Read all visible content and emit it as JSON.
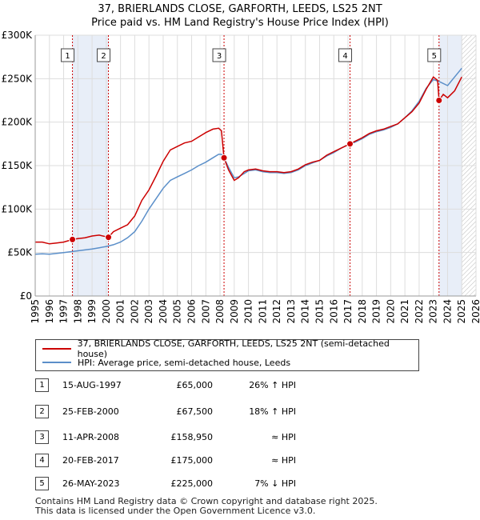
{
  "title_line1": "37, BRIERLANDS CLOSE, GARFORTH, LEEDS, LS25 2NT",
  "title_line2": "Price paid vs. HM Land Registry's House Price Index (HPI)",
  "legend": {
    "property": "37, BRIERLANDS CLOSE, GARFORTH, LEEDS, LS25 2NT (semi-detached house)",
    "hpi": "HPI: Average price, semi-detached house, Leeds"
  },
  "colors": {
    "property": "#cc0000",
    "hpi": "#5b8fc9",
    "shade": "#e8eef8",
    "marker_line": "#cc0000",
    "grid": "#dddddd"
  },
  "sales": [
    {
      "num": "1",
      "date": "15-AUG-1997",
      "price": "£65,000",
      "hpi": "26% ↑ HPI"
    },
    {
      "num": "2",
      "date": "25-FEB-2000",
      "price": "£67,500",
      "hpi": "18% ↑ HPI"
    },
    {
      "num": "3",
      "date": "11-APR-2008",
      "price": "£158,950",
      "hpi": "≈ HPI"
    },
    {
      "num": "4",
      "date": "20-FEB-2017",
      "price": "£175,000",
      "hpi": "≈ HPI"
    },
    {
      "num": "5",
      "date": "26-MAY-2023",
      "price": "£225,000",
      "hpi": "7% ↓ HPI"
    }
  ],
  "footer_line1": "Contains HM Land Registry data © Crown copyright and database right 2025.",
  "footer_line2": "This data is licensed under the Open Government Licence v3.0.",
  "chart_data": {
    "type": "line",
    "title": "Price paid vs. HM Land Registry's House Price Index (HPI)",
    "xlim": [
      1995,
      2026
    ],
    "ylim": [
      0,
      300000
    ],
    "x_ticks": [
      "1995",
      "1996",
      "1997",
      "1998",
      "1999",
      "2000",
      "2001",
      "2002",
      "2003",
      "2004",
      "2005",
      "2006",
      "2007",
      "2008",
      "2009",
      "2010",
      "2011",
      "2012",
      "2013",
      "2014",
      "2015",
      "2016",
      "2017",
      "2018",
      "2019",
      "2020",
      "2021",
      "2022",
      "2023",
      "2024",
      "2025",
      "2026"
    ],
    "y_ticks": [
      {
        "value": 0,
        "label": "£0"
      },
      {
        "value": 50000,
        "label": "£50K"
      },
      {
        "value": 100000,
        "label": "£100K"
      },
      {
        "value": 150000,
        "label": "£150K"
      },
      {
        "value": 200000,
        "label": "£200K"
      },
      {
        "value": 250000,
        "label": "£250K"
      },
      {
        "value": 300000,
        "label": "£300K"
      }
    ],
    "shaded_periods": [
      [
        1997.62,
        2000.15
      ],
      [
        2023.4,
        2025.0
      ]
    ],
    "hatched_from": 2025.0,
    "sale_markers": [
      {
        "label": "1",
        "x": 1997.62,
        "y": 65000
      },
      {
        "label": "2",
        "x": 2000.15,
        "y": 67500
      },
      {
        "label": "3",
        "x": 2008.28,
        "y": 158950
      },
      {
        "label": "4",
        "x": 2017.14,
        "y": 175000
      },
      {
        "label": "5",
        "x": 2023.4,
        "y": 225000
      }
    ],
    "series": [
      {
        "name": "37, BRIERLANDS CLOSE, GARFORTH, LEEDS, LS25 2NT (semi-detached house)",
        "x": [
          1995.0,
          1995.5,
          1996.0,
          1996.5,
          1997.0,
          1997.62,
          1998.0,
          1998.5,
          1999.0,
          1999.5,
          2000.15,
          2000.5,
          2001.0,
          2001.5,
          2002.0,
          2002.5,
          2003.0,
          2003.5,
          2004.0,
          2004.5,
          2005.0,
          2005.5,
          2006.0,
          2006.5,
          2007.0,
          2007.5,
          2007.9,
          2008.1,
          2008.28,
          2008.6,
          2009.0,
          2009.3,
          2009.7,
          2010.0,
          2010.5,
          2011.0,
          2011.5,
          2012.0,
          2012.5,
          2013.0,
          2013.5,
          2014.0,
          2014.5,
          2015.0,
          2015.5,
          2016.0,
          2016.5,
          2017.14,
          2017.5,
          2018.0,
          2018.5,
          2019.0,
          2019.5,
          2020.0,
          2020.5,
          2021.0,
          2021.5,
          2022.0,
          2022.5,
          2023.0,
          2023.3,
          2023.4,
          2023.7,
          2024.0,
          2024.5,
          2025.0
        ],
        "y": [
          62000,
          62000,
          60000,
          61000,
          62000,
          65000,
          66000,
          67000,
          69000,
          70000,
          67500,
          74000,
          78000,
          82000,
          92000,
          110000,
          122000,
          138000,
          155000,
          168000,
          172000,
          176000,
          178000,
          183000,
          188000,
          192000,
          193000,
          190000,
          158950,
          145000,
          133000,
          136000,
          143000,
          145000,
          146000,
          144000,
          143000,
          143000,
          142000,
          143000,
          146000,
          151000,
          154000,
          156000,
          162000,
          166000,
          170000,
          175000,
          178000,
          182000,
          187000,
          190000,
          192000,
          195000,
          198000,
          205000,
          212000,
          222000,
          238000,
          252000,
          248000,
          225000,
          232000,
          228000,
          236000,
          252000
        ]
      },
      {
        "name": "HPI: Average price, semi-detached house, Leeds",
        "x": [
          1995.0,
          1995.5,
          1996.0,
          1996.5,
          1997.0,
          1997.5,
          1998.0,
          1998.5,
          1999.0,
          1999.5,
          2000.0,
          2000.5,
          2001.0,
          2001.5,
          2002.0,
          2002.5,
          2003.0,
          2003.5,
          2004.0,
          2004.5,
          2005.0,
          2005.5,
          2006.0,
          2006.5,
          2007.0,
          2007.5,
          2007.9,
          2008.1,
          2008.3,
          2008.6,
          2009.0,
          2009.3,
          2009.7,
          2010.0,
          2010.5,
          2011.0,
          2011.5,
          2012.0,
          2012.5,
          2013.0,
          2013.5,
          2014.0,
          2014.5,
          2015.0,
          2015.5,
          2016.0,
          2016.5,
          2017.0,
          2017.5,
          2018.0,
          2018.5,
          2019.0,
          2019.5,
          2020.0,
          2020.5,
          2021.0,
          2021.5,
          2022.0,
          2022.5,
          2023.0,
          2023.5,
          2024.0,
          2024.5,
          2025.0
        ],
        "y": [
          48000,
          48500,
          48000,
          49000,
          50000,
          51000,
          52000,
          53000,
          54000,
          55500,
          57000,
          59000,
          62000,
          67000,
          74000,
          86000,
          100000,
          112000,
          124000,
          133000,
          137000,
          141000,
          145000,
          150000,
          154000,
          159000,
          163000,
          163000,
          158000,
          148000,
          136000,
          137000,
          141000,
          144000,
          145000,
          143000,
          142000,
          142000,
          141000,
          142000,
          145000,
          150000,
          153000,
          156000,
          161000,
          165000,
          170000,
          174000,
          177000,
          181000,
          186000,
          189000,
          191000,
          194000,
          198000,
          205000,
          213000,
          224000,
          239000,
          249000,
          246000,
          242000,
          252000,
          262000
        ]
      }
    ]
  }
}
